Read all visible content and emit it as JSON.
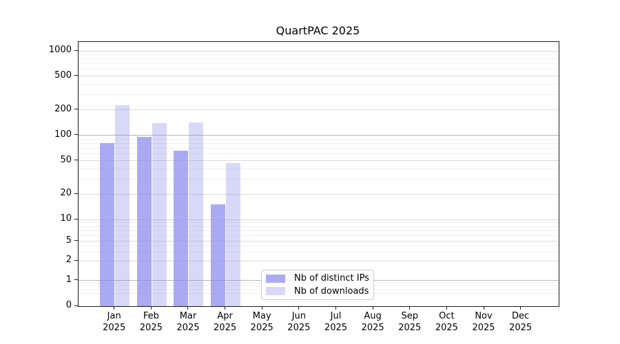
{
  "chart_data": {
    "type": "bar",
    "title": "QuartPAC 2025",
    "categories": [
      "Jan",
      "Feb",
      "Mar",
      "Apr",
      "May",
      "Jun",
      "Jul",
      "Aug",
      "Sep",
      "Oct",
      "Nov",
      "Dec"
    ],
    "category_year": "2025",
    "series": [
      {
        "name": "Nb of distinct IPs",
        "color": "#8888ee",
        "opacity": 0.7,
        "values": [
          80,
          95,
          65,
          15,
          null,
          null,
          null,
          null,
          null,
          null,
          null,
          null
        ]
      },
      {
        "name": "Nb of downloads",
        "color": "#8888ee",
        "opacity": 0.33,
        "values": [
          225,
          140,
          142,
          47,
          null,
          null,
          null,
          null,
          null,
          null,
          null,
          null
        ]
      }
    ],
    "y_axis": {
      "scale": "log-like",
      "ticks": [
        0,
        1,
        2,
        5,
        10,
        20,
        50,
        100,
        200,
        500,
        1000
      ],
      "emphasized_ticks": [
        1,
        100
      ],
      "range": [
        0,
        1000
      ]
    },
    "x_axis": {
      "tick_label_format": "month over year"
    },
    "legend": {
      "position": "bottom-center"
    },
    "grid": true
  },
  "colors": {
    "bar_base": "#8888ee",
    "grid_minor": "#efefef",
    "grid_major": "#d9d9d9",
    "grid_emphasis": "#b4b4b4",
    "spine": "#1a1a1a",
    "text": "#000000",
    "legend_border": "#cccccc"
  }
}
